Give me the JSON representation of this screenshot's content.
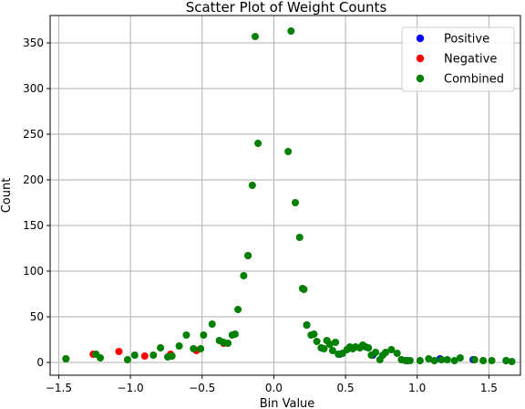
{
  "chart_data": {
    "type": "scatter",
    "title": "Scatter Plot of Weight Counts",
    "xlabel": "Bin Value",
    "ylabel": "Count",
    "xlim": [
      -1.56,
      1.72
    ],
    "ylim": [
      -14,
      380
    ],
    "xticks": [
      -1.5,
      -1.0,
      -0.5,
      0.0,
      0.5,
      1.0,
      1.5
    ],
    "xtick_labels": [
      "−1.5",
      "−1.0",
      "−0.5",
      "0.0",
      "0.5",
      "1.0",
      "1.5"
    ],
    "yticks": [
      0,
      50,
      100,
      150,
      200,
      250,
      300,
      350
    ],
    "ytick_labels": [
      "0",
      "50",
      "100",
      "150",
      "200",
      "250",
      "300",
      "350"
    ],
    "grid": true,
    "legend_position": "top-right",
    "colors": {
      "Positive": "#0000ff",
      "Negative": "#ff0000",
      "Combined": "#008000"
    },
    "series": [
      {
        "name": "Positive",
        "color": "#0000ff",
        "points": [
          [
            0.23,
            41
          ],
          [
            0.46,
            9
          ],
          [
            0.69,
            8
          ],
          [
            0.93,
            2
          ],
          [
            1.16,
            4
          ],
          [
            1.39,
            3
          ],
          [
            1.62,
            2
          ]
        ]
      },
      {
        "name": "Negative",
        "color": "#ff0000",
        "points": [
          [
            -1.45,
            4
          ],
          [
            -1.26,
            9
          ],
          [
            -1.08,
            12
          ],
          [
            -0.9,
            7
          ],
          [
            -0.72,
            9
          ],
          [
            -0.54,
            13
          ],
          [
            -0.35,
            21
          ],
          [
            -0.18,
            117
          ]
        ]
      },
      {
        "name": "Combined",
        "color": "#008000",
        "points": [
          [
            -1.45,
            4
          ],
          [
            -1.24,
            9
          ],
          [
            -1.21,
            5
          ],
          [
            -1.02,
            3
          ],
          [
            -0.97,
            8
          ],
          [
            -0.84,
            8
          ],
          [
            -0.79,
            16
          ],
          [
            -0.74,
            6
          ],
          [
            -0.71,
            7
          ],
          [
            -0.66,
            18
          ],
          [
            -0.61,
            30
          ],
          [
            -0.56,
            15
          ],
          [
            -0.51,
            15
          ],
          [
            -0.49,
            30
          ],
          [
            -0.43,
            42
          ],
          [
            -0.38,
            24
          ],
          [
            -0.35,
            22
          ],
          [
            -0.32,
            21
          ],
          [
            -0.29,
            30
          ],
          [
            -0.27,
            31
          ],
          [
            -0.25,
            58
          ],
          [
            -0.21,
            95
          ],
          [
            -0.18,
            117
          ],
          [
            -0.15,
            194
          ],
          [
            -0.13,
            357
          ],
          [
            -0.11,
            240
          ],
          [
            0.1,
            231
          ],
          [
            0.12,
            363
          ],
          [
            0.15,
            175
          ],
          [
            0.18,
            137
          ],
          [
            0.2,
            81
          ],
          [
            0.21,
            80
          ],
          [
            0.23,
            41
          ],
          [
            0.26,
            30
          ],
          [
            0.28,
            31
          ],
          [
            0.3,
            23
          ],
          [
            0.33,
            16
          ],
          [
            0.35,
            15
          ],
          [
            0.37,
            24
          ],
          [
            0.39,
            20
          ],
          [
            0.41,
            13
          ],
          [
            0.43,
            22
          ],
          [
            0.45,
            9
          ],
          [
            0.48,
            10
          ],
          [
            0.51,
            14
          ],
          [
            0.53,
            17
          ],
          [
            0.55,
            15
          ],
          [
            0.57,
            17
          ],
          [
            0.6,
            16
          ],
          [
            0.62,
            19
          ],
          [
            0.64,
            17
          ],
          [
            0.66,
            16
          ],
          [
            0.68,
            8
          ],
          [
            0.71,
            11
          ],
          [
            0.74,
            3
          ],
          [
            0.76,
            8
          ],
          [
            0.78,
            11
          ],
          [
            0.82,
            14
          ],
          [
            0.86,
            10
          ],
          [
            0.89,
            3
          ],
          [
            0.92,
            2
          ],
          [
            0.95,
            2
          ],
          [
            1.02,
            2
          ],
          [
            1.08,
            4
          ],
          [
            1.12,
            2
          ],
          [
            1.17,
            3
          ],
          [
            1.21,
            3
          ],
          [
            1.26,
            2
          ],
          [
            1.3,
            5
          ],
          [
            1.4,
            3
          ],
          [
            1.46,
            2
          ],
          [
            1.52,
            2
          ],
          [
            1.62,
            2
          ],
          [
            1.66,
            1
          ]
        ]
      }
    ]
  }
}
